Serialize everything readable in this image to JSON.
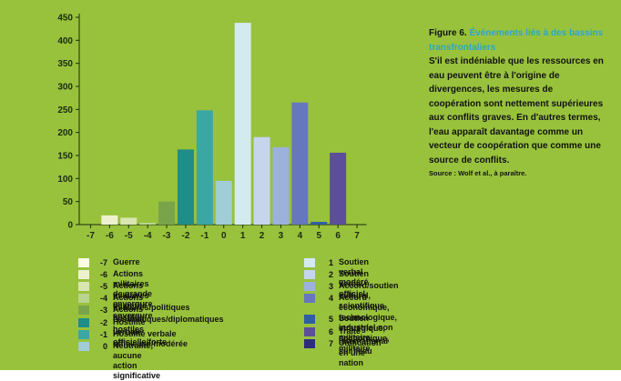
{
  "figure": {
    "number": "Figure 6.",
    "title": " Événements liés à des bassins transfrontaliers",
    "body": "S'il est indéniable que les ressources en eau peuvent être à l'origine de divergences, les mesures de coopération sont nettement supérieures aux conflits graves. En d'autres termes, l'eau apparaît davantage comme un vecteur de coopération que comme une source de conflits.",
    "source": "Source : Wolf et al., à paraître."
  },
  "chart_data": {
    "type": "bar",
    "categories": [
      "-7",
      "-6",
      "-5",
      "-4",
      "-3",
      "-2",
      "-1",
      "0",
      "1",
      "2",
      "3",
      "4",
      "5",
      "6",
      "7"
    ],
    "values": [
      0,
      20,
      15,
      4,
      50,
      163,
      248,
      95,
      438,
      190,
      168,
      265,
      6,
      156,
      0
    ],
    "colors": [
      "#fbfbe4",
      "#eef1cf",
      "#d9e6b2",
      "#bad48e",
      "#7aa44a",
      "#1f8d88",
      "#3aa7a5",
      "#a0cdd6",
      "#d3ebee",
      "#c7d5ec",
      "#9cb2da",
      "#6677bd",
      "#2f5ea2",
      "#5d4e9b",
      "#2e2d7a"
    ],
    "ylim": [
      0,
      450
    ],
    "yticks": [
      0,
      50,
      100,
      150,
      200,
      250,
      300,
      350,
      400,
      450
    ],
    "title": "",
    "xlabel": "",
    "ylabel": "",
    "grid": false
  },
  "legend": [
    {
      "code": "-7",
      "label": "Guerre"
    },
    {
      "code": "-6",
      "label": "Actions militaires de grande envergure"
    },
    {
      "code": "-5",
      "label": "Actions militaires de petite envergure"
    },
    {
      "code": "-4",
      "label": "Actions militaires/politiques hostiles"
    },
    {
      "code": "-3",
      "label": "Actions économiques/diplomatiques hostiles"
    },
    {
      "code": "-2",
      "label": "Hostilité verbale officielle/forte"
    },
    {
      "code": "-1",
      "label": "Hostilité verbale officieuse/modérée"
    },
    {
      "code": "0",
      "label": "Neutralité, aucune action significative"
    },
    {
      "code": "1",
      "label": "Soutien verbal modéré"
    },
    {
      "code": "2",
      "label": "Soutien verbal officiel"
    },
    {
      "code": "3",
      "label": "Accord/soutien culturel, scientifique"
    },
    {
      "code": "4",
      "label": "Accord économique, technologique,\nindustriel non militaire"
    },
    {
      "code": "5",
      "label": "Soutien stratégique, économique, militaire"
    },
    {
      "code": "6",
      "label": "Traité international sur l'eau"
    },
    {
      "code": "7",
      "label": "Unification en une nation"
    }
  ]
}
